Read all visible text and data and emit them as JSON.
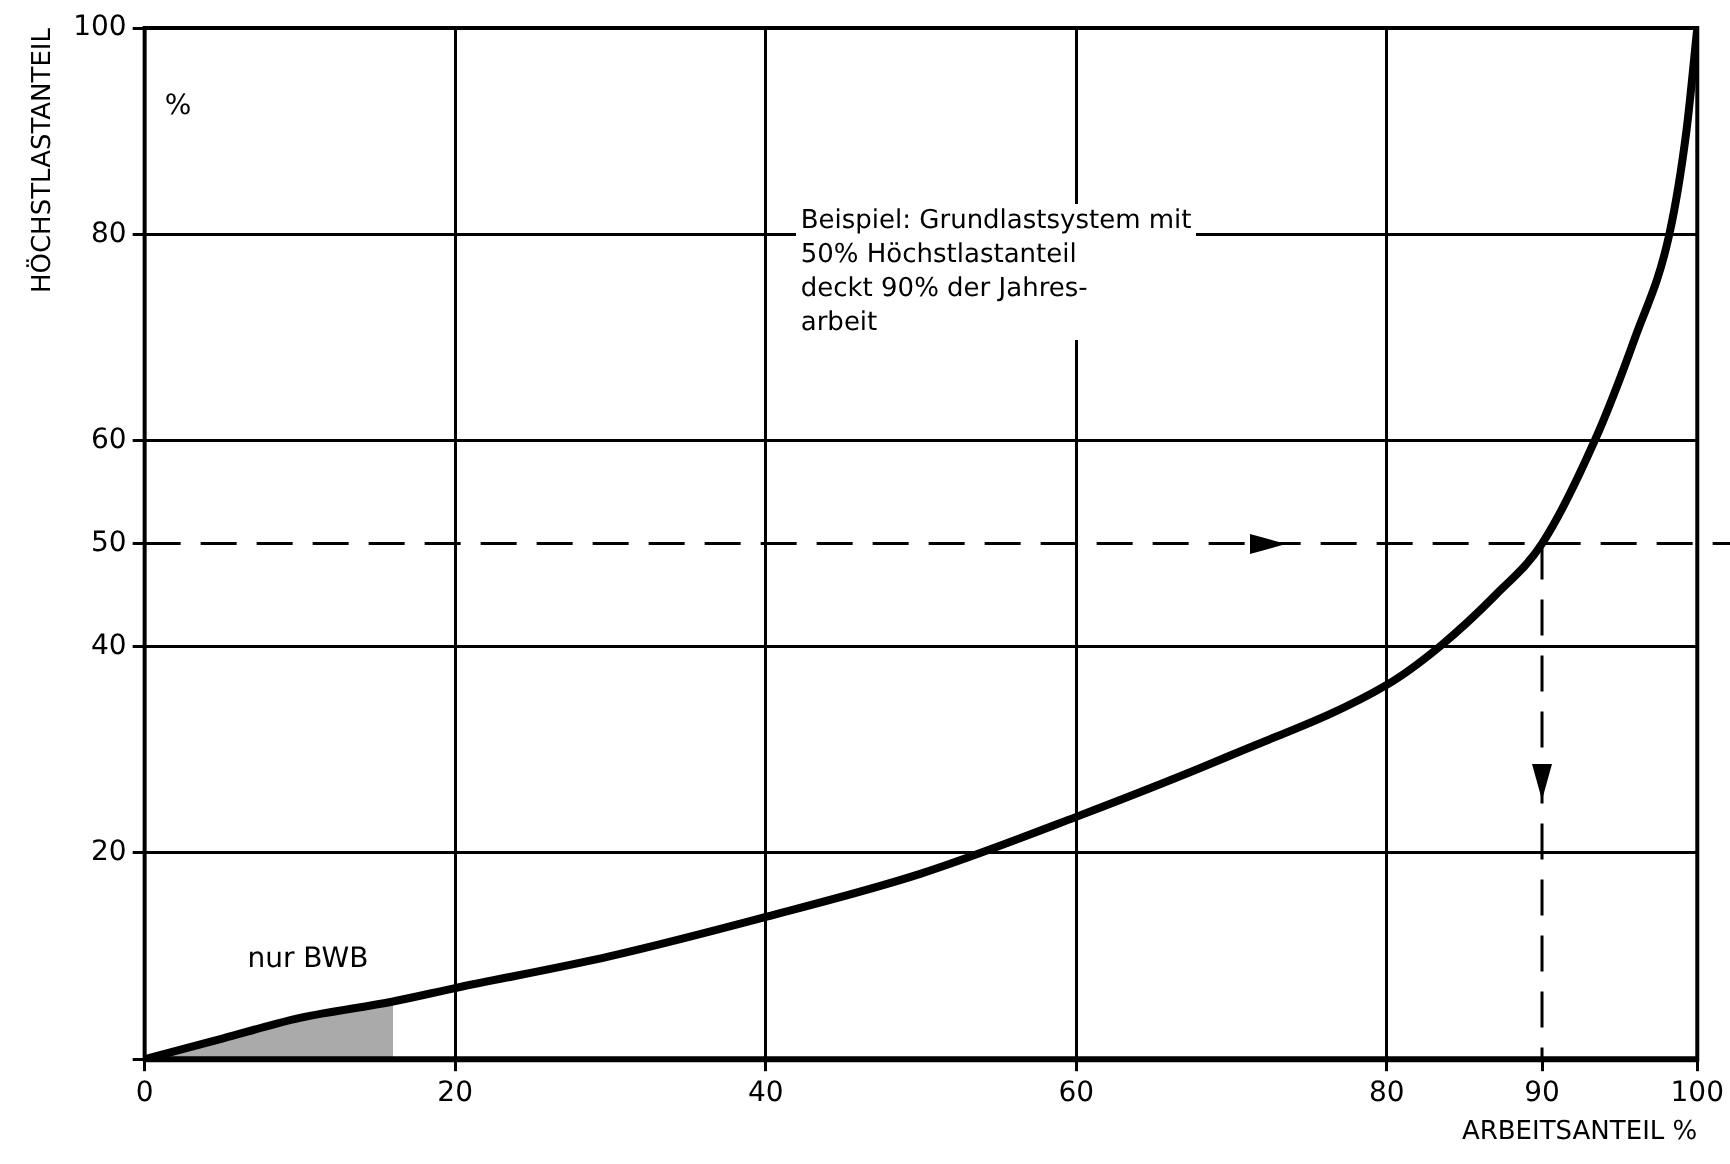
{
  "chart_data": {
    "type": "line",
    "xlabel": "ARBEITSANTEIL %",
    "ylabel": "HÖCHSTLASTANTEIL",
    "annotations": [
      "Beispiel: Grundlastsystem mit\n50% Höchstlastanteil\ndeckt 90% der Jahres-\narbeit",
      "%"
    ],
    "x": [
      0,
      5,
      10,
      16,
      20,
      30,
      40,
      50,
      60,
      70,
      80,
      83.4,
      87,
      90,
      93.4,
      96,
      98.2,
      99.3,
      100
    ],
    "series": [
      {
        "color": "#000000",
        "values": [
          0,
          2,
          4,
          5.6,
          6.9,
          10,
          13.8,
          18,
          23.5,
          29.5,
          36.3,
          40,
          45,
          50,
          60,
          70,
          80,
          90,
          100
        ]
      },
      {
        "type": "area",
        "name": "nur BWB",
        "color": "#000000",
        "x": [
          0,
          5,
          10,
          16
        ],
        "values": [
          0,
          2,
          4,
          5.6
        ]
      }
    ],
    "xlim": [
      0,
      100
    ],
    "ylim": [
      0,
      100
    ],
    "xticks": [
      0,
      20,
      40,
      60,
      80,
      90,
      100
    ],
    "yticks": [
      {
        "value": 0,
        "label": null
      },
      20,
      40,
      50,
      60,
      80,
      100
    ],
    "ref_lines": [
      {
        "axis": "y",
        "value": 50,
        "line_style": "dashed",
        "color": "#000000"
      },
      {
        "axis": "x",
        "value": 90,
        "line_style": "dashed",
        "color": "#000000"
      }
    ],
    "grid": true,
    "legend": false,
    "marker": "none",
    "line_style": "solid"
  }
}
